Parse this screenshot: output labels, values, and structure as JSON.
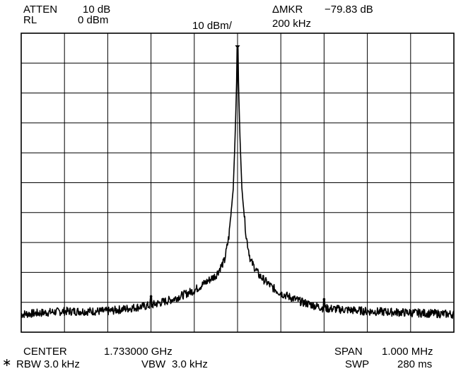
{
  "header": {
    "atten_label": "ATTEN",
    "atten_value": "10 dB",
    "rl_label": "RL",
    "rl_value": "0 dBm",
    "scale": "10 dBm/",
    "marker_label": "ΔMKR",
    "marker_value": "−79.83 dB",
    "marker_freq": "200 kHz"
  },
  "footer": {
    "center_label": "CENTER",
    "center_value": "1.733000 GHz",
    "span_label": "SPAN",
    "span_value": "1.000 MHz",
    "star": "∗",
    "rbw_label": "RBW",
    "rbw_value": "3.0 kHz",
    "vbw_label": "VBW",
    "vbw_value": "3.0 kHz",
    "swp_label": "SWP",
    "swp_value": "280 ms"
  },
  "colors": {
    "trace": "#000000",
    "grid": "#000000",
    "background": "#ffffff"
  },
  "chart_data": {
    "type": "line",
    "title": "",
    "xlabel": "",
    "ylabel": "",
    "xlim": [
      1732.5,
      1733.5
    ],
    "x_unit": "MHz",
    "ylim": [
      -100,
      0
    ],
    "y_unit": "dBm",
    "x_divisions": 10,
    "y_divisions": 10,
    "grid": true,
    "series": [
      {
        "x": [
          1732.5,
          1732.6,
          1732.7,
          1732.8,
          1732.85,
          1732.9,
          1732.92,
          1732.95,
          1732.97,
          1732.98,
          1732.99,
          1732.995,
          1732.998,
          1733.0,
          1733.002,
          1733.005,
          1733.01,
          1733.02,
          1733.03,
          1733.05,
          1733.08,
          1733.1,
          1733.15,
          1733.2,
          1733.3,
          1733.4,
          1733.5
        ],
        "values": [
          -94,
          -93,
          -93,
          -91,
          -89,
          -86,
          -84,
          -81,
          -76,
          -68,
          -52,
          -32,
          -15,
          -5,
          -15,
          -32,
          -52,
          -68,
          -76,
          -81,
          -85,
          -87,
          -90,
          -92,
          -93,
          -93.5,
          -94
        ]
      }
    ],
    "marker": {
      "x": 1733.0,
      "y": -5
    },
    "spurs": [
      {
        "x": 1732.8,
        "y": -88
      },
      {
        "x": 1733.2,
        "y": -89
      }
    ]
  }
}
